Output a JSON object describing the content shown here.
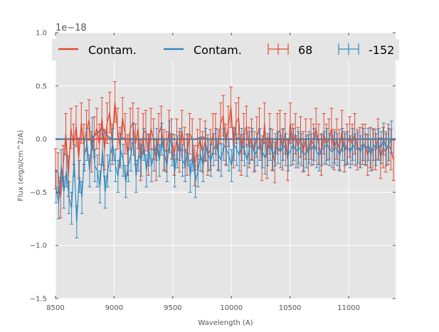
{
  "chart_data": {
    "type": "line",
    "xlabel": "Wavelength (A)",
    "ylabel": "Flux (erg/s/cm^2/A)",
    "y_offset_label": "1e−18",
    "xlim": [
      8500,
      11400
    ],
    "ylim": [
      -1.5,
      1.0
    ],
    "x_ticks": [
      8500,
      9000,
      9500,
      10000,
      10500,
      11000
    ],
    "x_tick_labels": [
      "8500",
      "9000",
      "9500",
      "10000",
      "10500",
      "11000"
    ],
    "y_ticks": [
      -1.5,
      -1.0,
      -0.5,
      0.0,
      0.5,
      1.0
    ],
    "y_tick_labels": [
      "−1.5",
      "−1.0",
      "−0.5",
      "0.0",
      "0.5",
      "1.0"
    ],
    "grid": true,
    "legend_position": "top",
    "colors": {
      "red": "#E24A33",
      "blue": "#348ABD",
      "background": "#E5E5E5",
      "grid": "#FFFFFF"
    },
    "legend": [
      {
        "label": "Contam.",
        "kind": "line",
        "color": "#E24A33"
      },
      {
        "label": "Contam.",
        "kind": "line",
        "color": "#348ABD"
      },
      {
        "label": "68",
        "kind": "errorbar",
        "color": "#E24A33"
      },
      {
        "label": "-152",
        "kind": "errorbar",
        "color": "#348ABD"
      }
    ],
    "series": [
      {
        "name": "68",
        "color": "#E24A33",
        "x_start": 8500,
        "x_step": 22,
        "err": 0.19,
        "y": [
          -0.28,
          -0.32,
          -0.55,
          -0.25,
          0.05,
          -0.35,
          0.1,
          -0.05,
          0.12,
          -0.18,
          0.15,
          -0.05,
          0.08,
          0.18,
          -0.12,
          0.02,
          0.1,
          -0.05,
          0.2,
          -0.1,
          0.15,
          0.25,
          -0.05,
          0.35,
          0.1,
          -0.08,
          0.2,
          0.05,
          -0.15,
          0.1,
          0.15,
          -0.05,
          0.1,
          -0.2,
          0.05,
          0.08,
          -0.15,
          0.1,
          0.0,
          -0.2,
          0.05,
          0.12,
          -0.1,
          -0.12,
          0.08,
          0.0,
          -0.15,
          0.0,
          -0.12,
          0.08,
          -0.08,
          -0.15,
          0.05,
          0.0,
          -0.25,
          -0.1,
          0.0,
          -0.12,
          -0.02,
          -0.15,
          -0.1,
          0.05,
          0.05,
          -0.1,
          0.15,
          0.22,
          -0.05,
          0.12,
          0.3,
          -0.08,
          0.15,
          0.2,
          -0.15,
          0.05,
          0.12,
          -0.08,
          0.0,
          -0.12,
          0.02,
          0.1,
          -0.2,
          0.15,
          -0.18,
          0.05,
          -0.1,
          -0.22,
          0.05,
          0.08,
          -0.1,
          0.05,
          -0.2,
          0.15,
          -0.05,
          0.05,
          -0.08,
          0.02,
          -0.12,
          0.0,
          -0.15,
          0.0,
          -0.05,
          0.1,
          -0.05,
          -0.15,
          0.05,
          -0.05,
          0.0,
          0.1,
          -0.1,
          0.0,
          -0.1,
          0.08,
          -0.12,
          -0.05,
          0.02,
          -0.05,
          0.05,
          -0.1,
          -0.08,
          -0.05,
          -0.05,
          -0.15,
          -0.08,
          -0.1,
          -0.1,
          0.0,
          -0.18,
          -0.08,
          -0.12,
          -0.05,
          -0.1,
          -0.2
        ]
      },
      {
        "name": "-152",
        "color": "#348ABD",
        "x_start": 8505,
        "x_step": 22,
        "err": 0.15,
        "y": [
          -0.45,
          -0.6,
          -0.25,
          -0.5,
          -0.3,
          -0.55,
          -0.65,
          -0.2,
          -0.78,
          -0.35,
          -0.55,
          -0.15,
          -0.05,
          -0.3,
          0.05,
          -0.25,
          -0.3,
          -0.45,
          -0.1,
          -0.5,
          -0.3,
          -0.15,
          -0.05,
          -0.25,
          -0.35,
          -0.1,
          -0.2,
          -0.4,
          -0.25,
          -0.15,
          0.0,
          -0.35,
          -0.15,
          -0.2,
          -0.05,
          -0.3,
          -0.1,
          -0.25,
          -0.15,
          -0.05,
          -0.2,
          0.0,
          -0.15,
          -0.25,
          0.02,
          -0.1,
          -0.3,
          -0.12,
          -0.05,
          -0.2,
          -0.25,
          -0.1,
          -0.35,
          -0.15,
          -0.4,
          -0.3,
          -0.15,
          -0.25,
          -0.05,
          -0.15,
          -0.2,
          -0.1,
          -0.05,
          -0.15,
          -0.2,
          -0.05,
          -0.1,
          -0.15,
          -0.25,
          -0.05,
          -0.1,
          -0.15,
          -0.05,
          -0.1,
          -0.2,
          -0.08,
          -0.05,
          -0.15,
          -0.1,
          -0.05,
          -0.12,
          -0.18,
          -0.1,
          -0.05,
          -0.15,
          -0.1,
          -0.08,
          -0.12,
          -0.05,
          -0.1,
          -0.15,
          -0.1,
          -0.05,
          -0.12,
          -0.08,
          -0.1,
          -0.15,
          -0.12,
          -0.08,
          -0.1,
          -0.05,
          -0.12,
          -0.15,
          -0.1,
          -0.08,
          -0.05,
          -0.1,
          -0.12,
          -0.08,
          -0.1,
          -0.15,
          -0.05,
          -0.1,
          -0.08,
          -0.12,
          -0.05,
          -0.1,
          -0.08,
          -0.12,
          -0.05,
          -0.1,
          -0.05,
          -0.15,
          -0.05,
          -0.1,
          -0.05,
          -0.08,
          0.0,
          -0.1,
          -0.05,
          0.02
        ]
      }
    ],
    "contam_series": [
      {
        "name": "Contam.",
        "color": "#E24A33",
        "x": [
          8500,
          11400
        ],
        "y": [
          0.0,
          0.0
        ]
      },
      {
        "name": "Contam.",
        "color": "#348ABD",
        "x": [
          8500,
          8800,
          8850,
          8900,
          8950,
          9000,
          9500,
          9700,
          9750,
          9800,
          11400
        ],
        "y": [
          0.0,
          0.0,
          0.05,
          0.1,
          0.02,
          0.0,
          0.0,
          0.0,
          0.02,
          0.0,
          0.0
        ]
      }
    ]
  }
}
